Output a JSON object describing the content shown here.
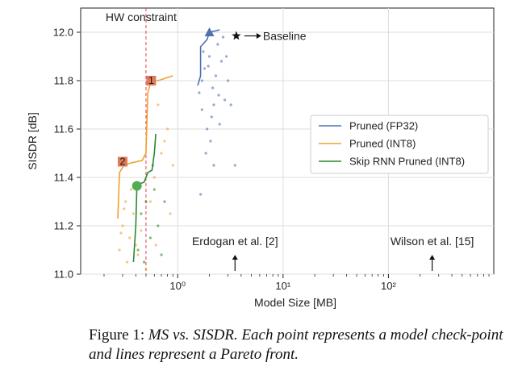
{
  "chart_data": {
    "type": "scatter",
    "xscale": "log",
    "xlabel": "Model Size [MB]",
    "ylabel": "SISDR [dB]",
    "xlim": [
      0.12,
      1000
    ],
    "ylim": [
      11.0,
      12.1
    ],
    "x_ticks": [
      1,
      10,
      100
    ],
    "x_tick_labels": [
      "10⁰",
      "10¹",
      "10²"
    ],
    "y_ticks": [
      11.0,
      11.2,
      11.4,
      11.6,
      11.8,
      12.0
    ],
    "y_tick_labels": [
      "11.0",
      "11.2",
      "11.4",
      "11.6",
      "11.8",
      "12.0"
    ],
    "grid": true,
    "legend_position": "right",
    "colors": {
      "fp32": "#4c72b0",
      "int8": "#f0a030",
      "skip": "#2a8a2a",
      "constraint": "#e0404a"
    },
    "hw_constraint": {
      "x": 0.5,
      "label": "HW constraint"
    },
    "baseline": {
      "x": 3.6,
      "y": 11.985,
      "label": "Baseline"
    },
    "series": [
      {
        "name": "Pruned (FP32)",
        "front": [
          [
            1.55,
            11.78
          ],
          [
            1.65,
            11.82
          ],
          [
            1.65,
            11.94
          ],
          [
            1.9,
            11.97
          ],
          [
            2.0,
            12.0
          ],
          [
            2.5,
            12.01
          ]
        ],
        "marker": [
          2.0,
          12.0
        ],
        "points": [
          [
            1.6,
            11.75
          ],
          [
            1.7,
            11.8
          ],
          [
            1.8,
            11.85
          ],
          [
            2.0,
            11.9
          ],
          [
            2.2,
            11.7
          ],
          [
            2.4,
            11.95
          ],
          [
            1.9,
            11.6
          ],
          [
            2.1,
            11.65
          ],
          [
            2.3,
            11.82
          ],
          [
            2.6,
            11.88
          ],
          [
            2.8,
            11.72
          ],
          [
            3.0,
            11.8
          ],
          [
            1.75,
            11.92
          ],
          [
            2.05,
            11.55
          ],
          [
            2.5,
            11.62
          ],
          [
            3.2,
            11.7
          ],
          [
            1.85,
            11.5
          ],
          [
            2.2,
            11.45
          ],
          [
            3.5,
            11.45
          ],
          [
            1.65,
            11.33
          ],
          [
            2.7,
            11.98
          ],
          [
            2.15,
            11.77
          ],
          [
            1.95,
            11.86
          ],
          [
            2.45,
            11.74
          ],
          [
            2.9,
            11.9
          ],
          [
            1.7,
            11.68
          ]
        ]
      },
      {
        "name": "Pruned (INT8)",
        "front": [
          [
            0.27,
            11.23
          ],
          [
            0.28,
            11.42
          ],
          [
            0.31,
            11.45
          ],
          [
            0.36,
            11.46
          ],
          [
            0.46,
            11.47
          ],
          [
            0.5,
            11.5
          ],
          [
            0.52,
            11.75
          ],
          [
            0.56,
            11.8
          ],
          [
            0.65,
            11.8
          ],
          [
            0.9,
            11.82
          ]
        ],
        "marker1": [
          0.56,
          11.8
        ],
        "marker2": [
          0.3,
          11.465
        ],
        "points": [
          [
            0.3,
            11.2
          ],
          [
            0.32,
            11.3
          ],
          [
            0.35,
            11.15
          ],
          [
            0.38,
            11.25
          ],
          [
            0.28,
            11.1
          ],
          [
            0.33,
            11.05
          ],
          [
            0.4,
            11.12
          ],
          [
            0.45,
            11.18
          ],
          [
            0.55,
            11.3
          ],
          [
            0.6,
            11.4
          ],
          [
            0.7,
            11.5
          ],
          [
            0.8,
            11.6
          ],
          [
            0.65,
            11.7
          ],
          [
            0.75,
            11.55
          ],
          [
            0.9,
            11.45
          ],
          [
            0.85,
            11.25
          ],
          [
            0.42,
            11.08
          ],
          [
            0.36,
            11.35
          ],
          [
            0.5,
            11.02
          ],
          [
            0.62,
            11.12
          ],
          [
            0.31,
            11.27
          ],
          [
            0.29,
            11.17
          ]
        ]
      },
      {
        "name": "Skip RNN Pruned (INT8)",
        "front": [
          [
            0.38,
            11.05
          ],
          [
            0.4,
            11.2
          ],
          [
            0.41,
            11.37
          ],
          [
            0.48,
            11.38
          ],
          [
            0.52,
            11.42
          ],
          [
            0.57,
            11.43
          ],
          [
            0.6,
            11.5
          ],
          [
            0.62,
            11.58
          ]
        ],
        "marker": [
          0.41,
          11.365
        ],
        "points": [
          [
            0.42,
            11.1
          ],
          [
            0.45,
            11.25
          ],
          [
            0.5,
            11.3
          ],
          [
            0.55,
            11.15
          ],
          [
            0.6,
            11.35
          ],
          [
            0.65,
            11.2
          ],
          [
            0.7,
            11.08
          ],
          [
            0.48,
            11.05
          ],
          [
            0.58,
            11.45
          ],
          [
            0.75,
            11.3
          ]
        ]
      }
    ],
    "annotations": [
      {
        "text": "Erdogan et al. [2]",
        "x": 3.5,
        "arrow_y": 11.08
      },
      {
        "text": "Wilson et al. [15]",
        "x": 260,
        "arrow_y": 11.08
      }
    ]
  },
  "caption": {
    "prefix": "Figure 1: ",
    "text": "MS vs. SISDR. Each point represents a model check-point and lines represent a Pareto front."
  }
}
